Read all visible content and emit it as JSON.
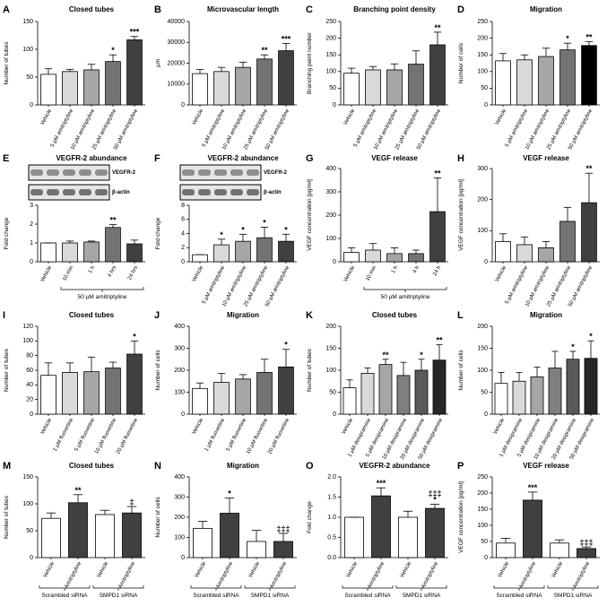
{
  "chart_data": [
    {
      "type": "bar",
      "panel": "A",
      "title": "Closed tubes",
      "ylabel": "Number of tubes",
      "categories": [
        "Vehicle",
        "5 µM amitriptyline",
        "10 µM amitriptyline",
        "25 µM amitriptyline",
        "50 µM amitriptyline"
      ],
      "values": [
        55,
        60,
        63,
        78,
        117
      ],
      "errors": [
        10,
        4,
        10,
        12,
        6
      ],
      "significance": [
        null,
        null,
        null,
        "*",
        "***"
      ],
      "colors": [
        "#ffffff",
        "#d9d9d9",
        "#a6a6a6",
        "#737373",
        "#404040"
      ],
      "ylim": [
        0,
        150
      ],
      "yticks": [
        0,
        50,
        100,
        150
      ]
    },
    {
      "type": "bar",
      "panel": "B",
      "title": "Microvascular length",
      "ylabel": "µm",
      "categories": [
        "Vehicle",
        "5 µM amitriptyline",
        "10 µM amitriptyline",
        "25 µM amitriptyline",
        "50 µM amitriptyline"
      ],
      "values": [
        15000,
        16000,
        18000,
        22000,
        26000
      ],
      "errors": [
        2000,
        2000,
        2500,
        2000,
        3500
      ],
      "significance": [
        null,
        null,
        null,
        "**",
        "***"
      ],
      "colors": [
        "#ffffff",
        "#d9d9d9",
        "#a6a6a6",
        "#737373",
        "#404040"
      ],
      "ylim": [
        0,
        40000
      ],
      "yticks": [
        0,
        10000,
        20000,
        30000,
        40000
      ]
    },
    {
      "type": "bar",
      "panel": "C",
      "title": "Branching point density",
      "ylabel": "Branching point number",
      "categories": [
        "Vehicle",
        "5 µM amitriptyline",
        "10 µM amitriptyline",
        "25 µM amitriptyline",
        "50 µM amitriptyline"
      ],
      "values": [
        95,
        105,
        105,
        122,
        180
      ],
      "errors": [
        15,
        10,
        18,
        40,
        38
      ],
      "significance": [
        null,
        null,
        null,
        null,
        "**"
      ],
      "colors": [
        "#ffffff",
        "#d9d9d9",
        "#a6a6a6",
        "#737373",
        "#404040"
      ],
      "ylim": [
        0,
        250
      ],
      "yticks": [
        0,
        50,
        100,
        150,
        200,
        250
      ]
    },
    {
      "type": "bar",
      "panel": "D",
      "title": "Migration",
      "ylabel": "Number of cells",
      "categories": [
        "Vehicle",
        "5 µM amitriptyline",
        "10 µM amitriptyline",
        "25 µM amitriptyline",
        "50 µM amitriptyline"
      ],
      "values": [
        132,
        135,
        145,
        165,
        178
      ],
      "errors": [
        22,
        15,
        25,
        20,
        12
      ],
      "significance": [
        null,
        null,
        null,
        "*",
        "**"
      ],
      "colors": [
        "#ffffff",
        "#d9d9d9",
        "#a6a6a6",
        "#737373",
        "#000000"
      ],
      "ylim": [
        0,
        250
      ],
      "yticks": [
        0,
        50,
        100,
        150,
        200,
        250
      ]
    },
    {
      "type": "bar",
      "panel": "E",
      "title": "VEGFR-2 abundance",
      "ylabel": "Fold change",
      "blot_labels": [
        "VEGFR-2",
        "β-actin"
      ],
      "categories": [
        "Vehicle",
        "10 min",
        "1 h",
        "4 hrs",
        "24 hrs"
      ],
      "values": [
        1,
        1,
        1.05,
        1.82,
        0.95
      ],
      "errors": [
        0,
        0.1,
        0.05,
        0.15,
        0.2
      ],
      "significance": [
        null,
        null,
        null,
        "**",
        null
      ],
      "colors": [
        "#ffffff",
        "#d9d9d9",
        "#a6a6a6",
        "#737373",
        "#404040"
      ],
      "ylim": [
        0,
        3
      ],
      "yticks": [
        0,
        1,
        2,
        3
      ],
      "groups": [
        {
          "label": "50 µM amitriptyline",
          "span": [
            1,
            4
          ]
        }
      ]
    },
    {
      "type": "bar",
      "panel": "F",
      "title": "VEGFR-2 abundance",
      "ylabel": "Fold change",
      "blot_labels": [
        "VEGFR-2",
        "β-actin"
      ],
      "categories": [
        "Vehicle",
        "5 µM amitriptyline",
        "10 µM amitriptyline",
        "25 µM amitriptyline",
        "50 µM amitriptyline"
      ],
      "values": [
        1,
        2.4,
        2.9,
        3.4,
        2.9
      ],
      "errors": [
        0,
        0.8,
        1,
        1.5,
        1
      ],
      "significance": [
        null,
        "*",
        "*",
        "*",
        "*"
      ],
      "colors": [
        "#ffffff",
        "#d9d9d9",
        "#a6a6a6",
        "#737373",
        "#404040"
      ],
      "ylim": [
        0,
        8
      ],
      "yticks": [
        0,
        2,
        4,
        6,
        8
      ]
    },
    {
      "type": "bar",
      "panel": "G",
      "title": "VEGF release",
      "ylabel": "VEGF concentration [pg/ml]",
      "categories": [
        "Vehicle",
        "10 min",
        "1 h",
        "4 h",
        "24 h"
      ],
      "values": [
        40,
        50,
        35,
        35,
        215
      ],
      "errors": [
        20,
        28,
        25,
        15,
        145
      ],
      "significance": [
        null,
        null,
        null,
        null,
        "**"
      ],
      "colors": [
        "#ffffff",
        "#d9d9d9",
        "#a6a6a6",
        "#737373",
        "#404040"
      ],
      "ylim": [
        0,
        400
      ],
      "yticks": [
        0,
        100,
        200,
        300,
        400
      ],
      "groups": [
        {
          "label": "50 µM amitriptyline",
          "span": [
            1,
            4
          ]
        }
      ]
    },
    {
      "type": "bar",
      "panel": "H",
      "title": "VEGF release",
      "ylabel": "VEGF concentration [pg/ml]",
      "categories": [
        "Vehicle",
        "5 µM amitriptyline",
        "10 µM amitriptyline",
        "25 µM amitriptyline",
        "50 µM amitriptyline"
      ],
      "values": [
        65,
        55,
        45,
        130,
        190
      ],
      "errors": [
        25,
        25,
        20,
        45,
        95
      ],
      "significance": [
        null,
        null,
        null,
        null,
        "**"
      ],
      "colors": [
        "#ffffff",
        "#d9d9d9",
        "#a6a6a6",
        "#737373",
        "#404040"
      ],
      "ylim": [
        0,
        300
      ],
      "yticks": [
        0,
        100,
        200,
        300
      ]
    },
    {
      "type": "bar",
      "panel": "I",
      "title": "Closed tubes",
      "ylabel": "Number of tubes",
      "categories": [
        "Vehicle",
        "1 µM fluoxetine",
        "5 µM fluoxetine",
        "10 µM fluoxetine",
        "20 µM fluoxetine"
      ],
      "values": [
        53,
        57,
        58,
        63,
        82
      ],
      "errors": [
        17,
        13,
        20,
        8,
        18
      ],
      "significance": [
        null,
        null,
        null,
        null,
        "*"
      ],
      "colors": [
        "#ffffff",
        "#d9d9d9",
        "#a6a6a6",
        "#737373",
        "#404040"
      ],
      "ylim": [
        0,
        120
      ],
      "yticks": [
        0,
        20,
        40,
        60,
        80,
        100,
        120
      ]
    },
    {
      "type": "bar",
      "panel": "J",
      "title": "Migration",
      "ylabel": "Number of cells",
      "categories": [
        "Vehicle",
        "1 µM fluoxetine",
        "5 µM fluoxetine",
        "10 µM fluoxetine",
        "20 µM fluoxetine"
      ],
      "values": [
        117,
        145,
        160,
        190,
        215
      ],
      "errors": [
        25,
        40,
        20,
        60,
        80
      ],
      "significance": [
        null,
        null,
        null,
        null,
        "*"
      ],
      "colors": [
        "#ffffff",
        "#d9d9d9",
        "#a6a6a6",
        "#737373",
        "#404040"
      ],
      "ylim": [
        0,
        400
      ],
      "yticks": [
        0,
        100,
        200,
        300,
        400
      ]
    },
    {
      "type": "bar",
      "panel": "K",
      "title": "Closed tubes",
      "ylabel": "Number of tubes",
      "categories": [
        "Vehicle",
        "1 µM desipramine",
        "5 µM desipramine",
        "10 µM desipramine",
        "20 µM desipramine",
        "50 µM desipramine"
      ],
      "values": [
        60,
        93,
        113,
        88,
        100,
        123
      ],
      "errors": [
        18,
        12,
        12,
        30,
        25,
        35
      ],
      "significance": [
        null,
        null,
        "**",
        null,
        "*",
        "**"
      ],
      "colors": [
        "#ffffff",
        "#d9d9d9",
        "#a6a6a6",
        "#7f7f7f",
        "#595959",
        "#262626"
      ],
      "ylim": [
        0,
        200
      ],
      "yticks": [
        0,
        50,
        100,
        150,
        200
      ]
    },
    {
      "type": "bar",
      "panel": "L",
      "title": "Migration",
      "ylabel": "Number of cells",
      "categories": [
        "Vehicle",
        "1 µM desipramine",
        "5 µM desipramine",
        "10 µM desipramine",
        "20 µM desipramine",
        "50 µM desipramine"
      ],
      "values": [
        70,
        75,
        85,
        105,
        125,
        127
      ],
      "errors": [
        25,
        20,
        22,
        38,
        18,
        40
      ],
      "significance": [
        null,
        null,
        null,
        null,
        "*",
        "*"
      ],
      "colors": [
        "#ffffff",
        "#d9d9d9",
        "#a6a6a6",
        "#7f7f7f",
        "#595959",
        "#262626"
      ],
      "ylim": [
        0,
        200
      ],
      "yticks": [
        0,
        50,
        100,
        150,
        200
      ]
    },
    {
      "type": "bar",
      "panel": "M",
      "title": "Closed tubes",
      "ylabel": "Number of tubes",
      "categories": [
        "Vehicle",
        "Amitriptyline",
        "Vehicle",
        "Amitriptyline"
      ],
      "values": [
        73,
        102,
        80,
        83
      ],
      "errors": [
        10,
        15,
        8,
        12
      ],
      "significance": [
        null,
        "**",
        null,
        "‡"
      ],
      "colors": [
        "#ffffff",
        "#404040",
        "#ffffff",
        "#404040"
      ],
      "ylim": [
        0,
        150
      ],
      "yticks": [
        0,
        50,
        100,
        150
      ],
      "groups": [
        {
          "label": "Scrambled siRNA",
          "span": [
            0,
            1
          ]
        },
        {
          "label": "SMPD1 siRNA",
          "span": [
            2,
            3
          ]
        }
      ]
    },
    {
      "type": "bar",
      "panel": "N",
      "title": "Migration",
      "ylabel": "Number of cells",
      "categories": [
        "Vehicle",
        "Amitriptyline",
        "Vehicle",
        "Amitriptyline"
      ],
      "values": [
        145,
        220,
        80,
        80
      ],
      "errors": [
        35,
        75,
        55,
        40
      ],
      "significance": [
        null,
        "*",
        null,
        "‡‡‡"
      ],
      "colors": [
        "#ffffff",
        "#404040",
        "#ffffff",
        "#404040"
      ],
      "ylim": [
        0,
        400
      ],
      "yticks": [
        0,
        100,
        200,
        300,
        400
      ],
      "groups": [
        {
          "label": "Scrambled siRNA",
          "span": [
            0,
            1
          ]
        },
        {
          "label": "SMPD1 siRNA",
          "span": [
            2,
            3
          ]
        }
      ]
    },
    {
      "type": "bar",
      "panel": "O",
      "title": "VEGFR-2 abundance",
      "ylabel": "Fold change",
      "categories": [
        "Vehicle",
        "Amitriptyline",
        "Vehicle",
        "Amitriptyline"
      ],
      "values": [
        1,
        1.53,
        1,
        1.22
      ],
      "errors": [
        0,
        0.2,
        0.15,
        0.1
      ],
      "significance": [
        null,
        "***",
        null,
        [
          "‡‡‡",
          "*"
        ]
      ],
      "colors": [
        "#ffffff",
        "#404040",
        "#ffffff",
        "#404040"
      ],
      "ylim": [
        0,
        2
      ],
      "yticks": [
        {
          "value": 0,
          "label": "0.0"
        },
        {
          "value": 0.5,
          "label": "0.5"
        },
        {
          "value": 1,
          "label": "1.0"
        },
        {
          "value": 1.5,
          "label": "1.5"
        },
        {
          "value": 2,
          "label": "2.0"
        }
      ],
      "groups": [
        {
          "label": "Scrambled siRNA",
          "span": [
            0,
            1
          ]
        },
        {
          "label": "SMPD1 siRNA",
          "span": [
            2,
            3
          ]
        }
      ]
    },
    {
      "type": "bar",
      "panel": "P",
      "title": "VEGF release",
      "ylabel": "VEGF concentration [pg/ml]",
      "categories": [
        "Vehicle",
        "Amitriptyline",
        "Vehicle",
        "Amitriptyline"
      ],
      "values": [
        45,
        178,
        45,
        28
      ],
      "errors": [
        15,
        25,
        10,
        5
      ],
      "significance": [
        null,
        "***",
        null,
        "‡‡‡"
      ],
      "colors": [
        "#ffffff",
        "#404040",
        "#ffffff",
        "#404040"
      ],
      "ylim": [
        0,
        250
      ],
      "yticks": [
        0,
        50,
        100,
        150,
        200,
        250
      ],
      "groups": [
        {
          "label": "Scrambled siRNA",
          "span": [
            0,
            1
          ]
        },
        {
          "label": "SMPD1 siRNA",
          "span": [
            2,
            3
          ]
        }
      ]
    }
  ]
}
